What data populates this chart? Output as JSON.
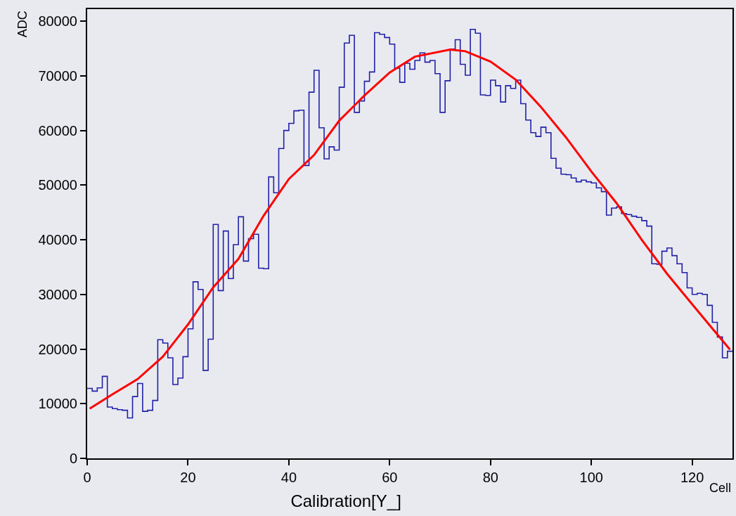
{
  "chart_data": {
    "type": "histogram",
    "title": "Calibration[Y_]",
    "xlabel": "Cell",
    "ylabel": "ADC",
    "bins": [
      0,
      1,
      2,
      3,
      4,
      5,
      6,
      7,
      8,
      9,
      10,
      11,
      12,
      13,
      14,
      15,
      16,
      17,
      18,
      19,
      20,
      21,
      22,
      23,
      24,
      25,
      26,
      27,
      28,
      29,
      30,
      31,
      32,
      33,
      34,
      35,
      36,
      37,
      38,
      39,
      40,
      41,
      42,
      43,
      44,
      45,
      46,
      47,
      48,
      49,
      50,
      51,
      52,
      53,
      54,
      55,
      56,
      57,
      58,
      59,
      60,
      61,
      62,
      63,
      64,
      65,
      66,
      67,
      68,
      69,
      70,
      71,
      72,
      73,
      74,
      75,
      76,
      77,
      78,
      79,
      80,
      81,
      82,
      83,
      84,
      85,
      86,
      87,
      88,
      89,
      90,
      91,
      92,
      93,
      94,
      95,
      96,
      97,
      98,
      99,
      100,
      101,
      102,
      103,
      104,
      105,
      106,
      107,
      108,
      109,
      110,
      111,
      112,
      113,
      114,
      115,
      116,
      117,
      118,
      119,
      120,
      121,
      122,
      123,
      124,
      125,
      126,
      127,
      128
    ],
    "series": [
      {
        "color": "#2121a8",
        "values": [
          12800,
          12300,
          12900,
          15000,
          9400,
          9100,
          8900,
          8800,
          7400,
          11300,
          13700,
          8600,
          8800,
          10600,
          21700,
          21100,
          18400,
          13500,
          14700,
          18600,
          23700,
          32300,
          30900,
          16100,
          21800,
          42800,
          30700,
          41600,
          32900,
          39100,
          44200,
          36100,
          40200,
          41000,
          34800,
          34700,
          51500,
          48600,
          56700,
          60000,
          61300,
          63600,
          63700,
          53600,
          67000,
          71000,
          60500,
          54800,
          57000,
          56400,
          67900,
          76000,
          77400,
          63300,
          65400,
          69000,
          70700,
          77900,
          77600,
          77000,
          75800,
          71400,
          68800,
          72300,
          71200,
          72800,
          74200,
          72500,
          72800,
          70400,
          63300,
          69100,
          74900,
          76600,
          72100,
          70100,
          78500,
          77800,
          66500,
          66400,
          69200,
          68200,
          65200,
          68200,
          67700,
          69200,
          64900,
          61900,
          59600,
          58900,
          60600,
          59600,
          54900,
          53100,
          52000,
          51900,
          51300,
          50600,
          50900,
          50600,
          50400,
          49500,
          48800,
          44500,
          45800,
          46000,
          44800,
          44600,
          44300,
          44100,
          43500,
          42500,
          35600,
          35500,
          37900,
          38500,
          37100,
          35600,
          34000,
          31200,
          30000,
          30200,
          30000,
          28000,
          24900,
          22200,
          18400,
          19600
        ]
      },
      {
        "type": "line",
        "color": "#ff0000",
        "x": [
          0.5,
          5,
          10,
          15,
          20,
          25,
          30,
          35,
          40,
          45,
          50,
          55,
          60,
          65,
          72,
          75,
          80,
          85,
          90,
          95,
          100,
          105,
          110,
          115,
          120,
          127.5
        ],
        "values": [
          9100,
          11700,
          14500,
          18600,
          24500,
          31300,
          36500,
          44400,
          51100,
          55500,
          61800,
          66400,
          70600,
          73500,
          74800,
          74500,
          72600,
          69300,
          64300,
          58700,
          52500,
          46700,
          40000,
          33800,
          28200,
          19900
        ]
      }
    ],
    "xlim": [
      0,
      128
    ],
    "xticks": [
      0,
      20,
      40,
      60,
      80,
      100,
      120
    ],
    "ylim": [
      0,
      82200
    ],
    "yticks": [
      0,
      10000,
      20000,
      30000,
      40000,
      50000,
      60000,
      70000,
      80000
    ],
    "grid": false
  }
}
